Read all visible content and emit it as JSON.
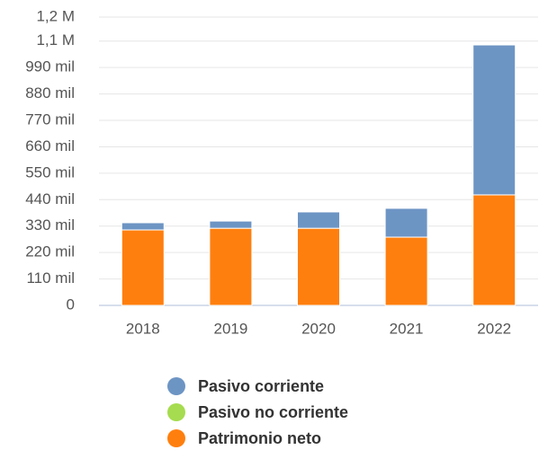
{
  "chart_data": {
    "type": "stacked_bar",
    "categories": [
      "2018",
      "2019",
      "2020",
      "2021",
      "2022"
    ],
    "series": [
      {
        "name": "Pasivo corriente",
        "color": "#6d95c4",
        "values": [
          30000,
          30000,
          68000,
          120000,
          624000
        ]
      },
      {
        "name": "Pasivo no corriente",
        "color": "#a6dc4f",
        "values": [
          0,
          0,
          0,
          0,
          0
        ]
      },
      {
        "name": "Patrimonio neto",
        "color": "#ff7f0e",
        "values": [
          314000,
          321000,
          321000,
          284000,
          460000
        ]
      }
    ],
    "ylim": [
      0,
      1200000
    ],
    "yticks": [
      0,
      {
        "value": 110000,
        "label": "110 mil"
      },
      {
        "value": 220000,
        "label": "220 mil"
      },
      {
        "value": 330000,
        "label": "330 mil"
      },
      {
        "value": 440000,
        "label": "440 mil"
      },
      {
        "value": 550000,
        "label": "550 mil"
      },
      {
        "value": 660000,
        "label": "660 mil"
      },
      {
        "value": 770000,
        "label": "770 mil"
      },
      {
        "value": 880000,
        "label": "880 mil"
      },
      {
        "value": 990000,
        "label": "990 mil"
      },
      {
        "value": 1100000,
        "label": "1,1 M"
      },
      {
        "value": 1200000,
        "label": "1,2 M"
      }
    ],
    "grid": true,
    "legend": "bottom"
  }
}
